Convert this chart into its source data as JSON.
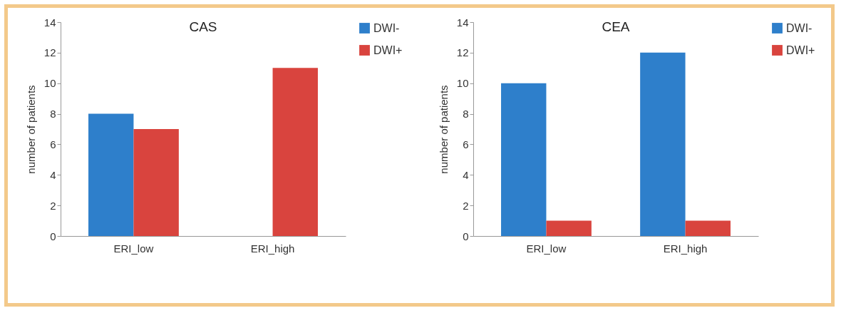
{
  "chart_data": [
    {
      "type": "bar",
      "title": "CAS",
      "ylabel": "number of patients",
      "categories": [
        "ERI_low",
        "ERI_high"
      ],
      "series": [
        {
          "name": "DWI-",
          "color": "#2e7fcb",
          "values": [
            8,
            0
          ]
        },
        {
          "name": "DWI+",
          "color": "#d9443e",
          "values": [
            7,
            11
          ]
        }
      ],
      "ylim": [
        0,
        14
      ],
      "yticks": [
        0,
        2,
        4,
        6,
        8,
        10,
        12,
        14
      ],
      "grid": false,
      "legend": "right"
    },
    {
      "type": "bar",
      "title": "CEA",
      "ylabel": "number of patients",
      "categories": [
        "ERI_low",
        "ERI_high"
      ],
      "series": [
        {
          "name": "DWI-",
          "color": "#2e7fcb",
          "values": [
            10,
            12
          ]
        },
        {
          "name": "DWI+",
          "color": "#d9443e",
          "values": [
            1,
            1
          ]
        }
      ],
      "ylim": [
        0,
        14
      ],
      "yticks": [
        0,
        2,
        4,
        6,
        8,
        10,
        12,
        14
      ],
      "grid": false,
      "legend": "right"
    }
  ]
}
